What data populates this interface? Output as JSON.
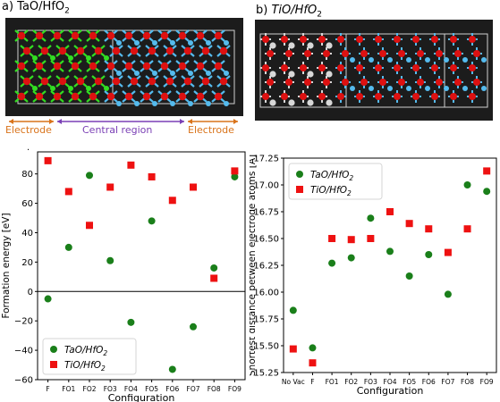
{
  "panels": {
    "a": {
      "prefix": "a) ",
      "label": "TaO/HfO",
      "sub": "2"
    },
    "b": {
      "prefix": "b) ",
      "label": "TiO/HfO",
      "sub": "2"
    }
  },
  "structure_a": {
    "regions": [
      "Electrode",
      "Central region",
      "Electrode"
    ],
    "region_colors": [
      "#d9731a",
      "#7a3fb5",
      "#d9731a"
    ],
    "atom_colors": {
      "ta": "#33dd22",
      "hf": "#55bbee",
      "o": "#dd1111"
    }
  },
  "structure_b": {
    "atom_colors": {
      "ti": "#d8d8d8",
      "hf": "#55bbee",
      "o": "#dd1111"
    }
  },
  "chart_data": [
    {
      "type": "scatter",
      "panel": "left",
      "title": ".",
      "xlabel": "Configuration",
      "ylabel": "Formation energy [eV]",
      "categories": [
        "F",
        "FO1",
        "FO2",
        "FO3",
        "FO4",
        "FO5",
        "FO6",
        "FO7",
        "FO8",
        "FO9"
      ],
      "ylim": [
        -60,
        95
      ],
      "yticks": [
        -60,
        -40,
        -20,
        0,
        20,
        40,
        60,
        80
      ],
      "zero_line": true,
      "grid": false,
      "legend_position": "bottom-left",
      "series": [
        {
          "name": "TaO/HfO",
          "sub": "2",
          "marker": "circle",
          "color": "#1a7f1a",
          "values": [
            -5,
            30,
            79,
            21,
            -21,
            48,
            -53,
            -24,
            16,
            78
          ]
        },
        {
          "name": "TiO/HfO",
          "sub": "2",
          "marker": "square",
          "color": "#ee1111",
          "values": [
            89,
            68,
            45,
            71,
            86,
            78,
            62,
            71,
            9,
            82
          ]
        }
      ]
    },
    {
      "type": "scatter",
      "panel": "right",
      "xlabel": "Configuration",
      "ylabel": "Shortest distance between electrode atoms [Å]",
      "categories": [
        "No Vac",
        "F",
        "FO1",
        "FO2",
        "FO3",
        "FO4",
        "FO5",
        "FO6",
        "FO7",
        "FO8",
        "FO9"
      ],
      "ylim": [
        15.25,
        17.25
      ],
      "yticks": [
        15.25,
        15.5,
        15.75,
        16.0,
        16.25,
        16.5,
        16.75,
        17.0,
        17.25
      ],
      "yticklabels": [
        "15.25",
        "15.50",
        "15.75",
        "16.00",
        "16.25",
        "16.50",
        "16.75",
        "17.00",
        "17.25"
      ],
      "grid": false,
      "legend_position": "top-left",
      "series": [
        {
          "name": "TaO/HfO",
          "sub": "2",
          "marker": "circle",
          "color": "#1a7f1a",
          "values": [
            15.83,
            15.48,
            16.27,
            16.32,
            16.69,
            16.38,
            16.15,
            16.35,
            15.98,
            17.0,
            16.94
          ]
        },
        {
          "name": "TiO/HfO",
          "sub": "2",
          "marker": "square",
          "color": "#ee1111",
          "values": [
            15.47,
            15.34,
            16.5,
            16.49,
            16.5,
            16.75,
            16.64,
            16.59,
            16.37,
            16.59,
            17.13
          ]
        }
      ]
    }
  ]
}
